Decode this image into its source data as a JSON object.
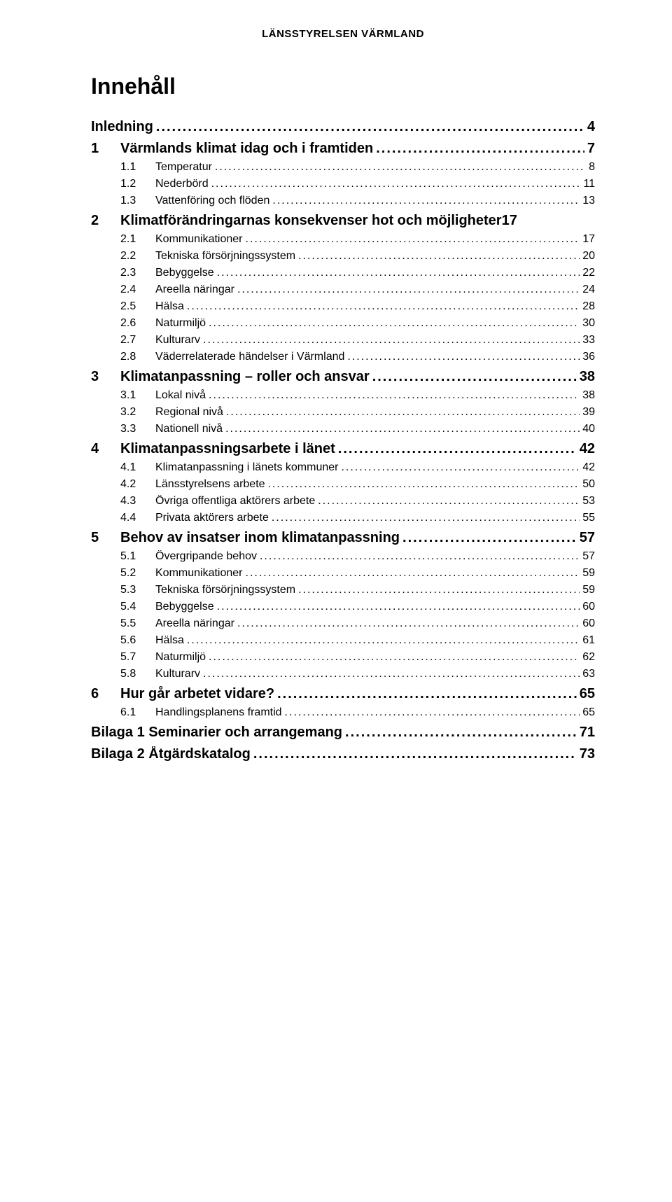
{
  "header": "LÄNSSTYRELSEN VÄRMLAND",
  "toc_title": "Innehåll",
  "entries": [
    {
      "level": 0,
      "num": "",
      "label": "Inledning",
      "page": "4"
    },
    {
      "level": 0,
      "num": "1",
      "label": "Värmlands klimat idag och i framtiden",
      "page": "7"
    },
    {
      "level": 1,
      "num": "1.1",
      "label": "Temperatur",
      "page": "8"
    },
    {
      "level": 1,
      "num": "1.2",
      "label": "Nederbörd",
      "page": "11"
    },
    {
      "level": 1,
      "num": "1.3",
      "label": "Vattenföring och flöden",
      "page": "13"
    },
    {
      "level": 0,
      "num": "2",
      "label": "Klimatförändringarnas konsekvenser hot och möjligheter17",
      "page": ""
    },
    {
      "level": 1,
      "num": "2.1",
      "label": "Kommunikationer",
      "page": "17"
    },
    {
      "level": 1,
      "num": "2.2",
      "label": "Tekniska försörjningssystem",
      "page": "20"
    },
    {
      "level": 1,
      "num": "2.3",
      "label": "Bebyggelse",
      "page": "22"
    },
    {
      "level": 1,
      "num": "2.4",
      "label": "Areella näringar",
      "page": "24"
    },
    {
      "level": 1,
      "num": "2.5",
      "label": "Hälsa",
      "page": "28"
    },
    {
      "level": 1,
      "num": "2.6",
      "label": "Naturmiljö",
      "page": "30"
    },
    {
      "level": 1,
      "num": "2.7",
      "label": "Kulturarv",
      "page": "33"
    },
    {
      "level": 1,
      "num": "2.8",
      "label": "Väderrelaterade händelser i Värmland",
      "page": "36"
    },
    {
      "level": 0,
      "num": "3",
      "label": "Klimatanpassning – roller och ansvar",
      "page": "38"
    },
    {
      "level": 1,
      "num": "3.1",
      "label": "Lokal nivå",
      "page": "38"
    },
    {
      "level": 1,
      "num": "3.2",
      "label": "Regional nivå",
      "page": "39"
    },
    {
      "level": 1,
      "num": "3.3",
      "label": "Nationell nivå",
      "page": "40"
    },
    {
      "level": 0,
      "num": "4",
      "label": "Klimatanpassningsarbete i länet",
      "page": "42"
    },
    {
      "level": 1,
      "num": "4.1",
      "label": "Klimatanpassning i länets kommuner",
      "page": "42"
    },
    {
      "level": 1,
      "num": "4.2",
      "label": "Länsstyrelsens arbete",
      "page": "50"
    },
    {
      "level": 1,
      "num": "4.3",
      "label": "Övriga offentliga aktörers arbete",
      "page": "53"
    },
    {
      "level": 1,
      "num": "4.4",
      "label": "Privata aktörers arbete",
      "page": "55"
    },
    {
      "level": 0,
      "num": "5",
      "label": "Behov av insatser inom klimatanpassning",
      "page": "57"
    },
    {
      "level": 1,
      "num": "5.1",
      "label": "Övergripande behov",
      "page": "57"
    },
    {
      "level": 1,
      "num": "5.2",
      "label": "Kommunikationer",
      "page": "59"
    },
    {
      "level": 1,
      "num": "5.3",
      "label": "Tekniska försörjningssystem",
      "page": "59"
    },
    {
      "level": 1,
      "num": "5.4",
      "label": "Bebyggelse",
      "page": "60"
    },
    {
      "level": 1,
      "num": "5.5",
      "label": "Areella näringar",
      "page": "60"
    },
    {
      "level": 1,
      "num": "5.6",
      "label": "Hälsa",
      "page": "61"
    },
    {
      "level": 1,
      "num": "5.7",
      "label": "Naturmiljö",
      "page": "62"
    },
    {
      "level": 1,
      "num": "5.8",
      "label": "Kulturarv",
      "page": "63"
    },
    {
      "level": 0,
      "num": "6",
      "label": "Hur går arbetet vidare?",
      "page": "65"
    },
    {
      "level": 1,
      "num": "6.1",
      "label": "Handlingsplanens framtid",
      "page": "65"
    },
    {
      "level": 0,
      "num": "",
      "label": "Bilaga 1 Seminarier och arrangemang",
      "page": "71"
    },
    {
      "level": 0,
      "num": "",
      "label": "Bilaga 2 Åtgärdskatalog",
      "page": "73"
    }
  ]
}
